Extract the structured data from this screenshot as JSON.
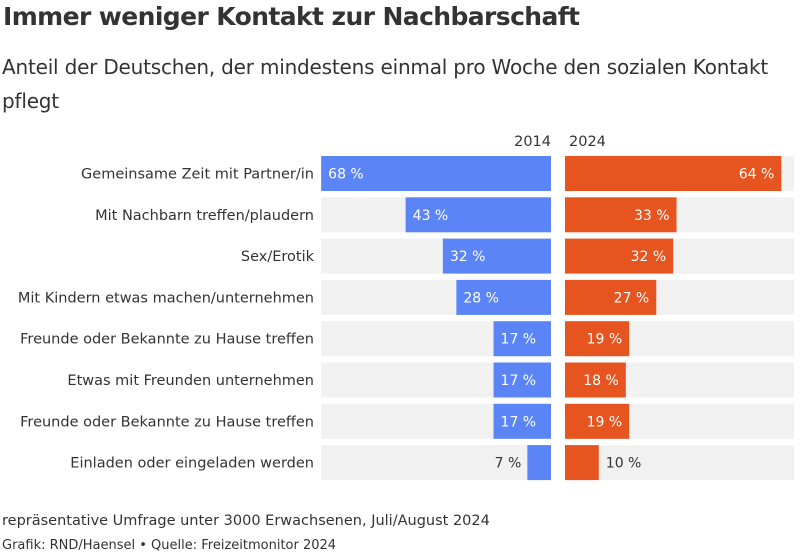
{
  "title": "Immer weniger Kontakt zur Nachbarschaft",
  "subtitle": "Anteil der Deutschen, der mindestens einmal pro Woche den sozialen Kontakt pflegt",
  "note": "repräsentative Umfrage unter 3000 Erwachsenen, Juli/August 2024",
  "credit": "Grafik: RND/Haensel • Quelle: Freizeitmonitor 2024",
  "colors": {
    "left": "#5b85f6",
    "right": "#e6541f",
    "track": "#f1f1f1"
  },
  "chart_data": {
    "type": "bar",
    "title": "Immer weniger Kontakt zur Nachbarschaft",
    "unit": "%",
    "xlim": [
      0,
      100
    ],
    "categories": [
      "Gemeinsame Zeit mit Partner/in",
      "Mit Nachbarn treffen/plaudern",
      "Sex/Erotik",
      "Mit Kindern etwas machen/unternehmen",
      "Freunde oder Bekannte zu Hause treffen",
      "Etwas mit Freunden unternehmen",
      "Freunde oder Bekannte zu Hause treffen",
      "Einladen oder eingeladen werden"
    ],
    "series": [
      {
        "name": "2014",
        "values": [
          68,
          43,
          32,
          28,
          17,
          17,
          17,
          7
        ],
        "labels": [
          "68 %",
          "43 %",
          "32 %",
          "28 %",
          "17 %",
          "17 %",
          "17 %",
          "7 %"
        ]
      },
      {
        "name": "2024",
        "values": [
          64,
          33,
          32,
          27,
          19,
          18,
          19,
          10
        ],
        "labels": [
          "64 %",
          "33 %",
          "32 %",
          "27 %",
          "19 %",
          "18 %",
          "19 %",
          "10 %"
        ]
      }
    ]
  }
}
